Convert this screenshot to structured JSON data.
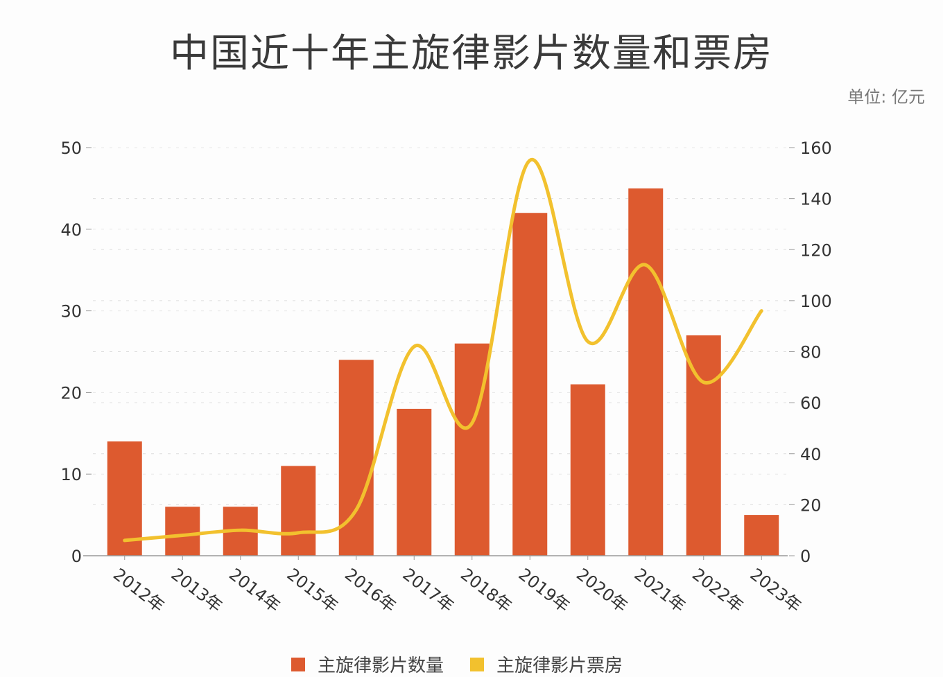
{
  "title": "中国近十年主旋律影片数量和票房",
  "unit_label": "单位: 亿元",
  "colors": {
    "bar": "#dd5a2f",
    "line": "#f2c12e",
    "grid": "#dddddd",
    "axis": "#999999"
  },
  "legend": [
    {
      "label": "主旋律影片数量",
      "color": "#dd5a2f",
      "kind": "bar"
    },
    {
      "label": "主旋律影片票房",
      "color": "#f2c12e",
      "kind": "line"
    }
  ],
  "chart_data": {
    "type": "bar+line",
    "title": "中国近十年主旋律影片数量和票房",
    "subtitle": "单位: 亿元",
    "categories": [
      "2012年",
      "2013年",
      "2014年",
      "2015年",
      "2016年",
      "2017年",
      "2018年",
      "2019年",
      "2020年",
      "2021年",
      "2022年",
      "2023年"
    ],
    "series": [
      {
        "name": "主旋律影片数量",
        "type": "bar",
        "axis": "left",
        "values": [
          14,
          6,
          6,
          11,
          24,
          18,
          26,
          42,
          21,
          45,
          27,
          5
        ]
      },
      {
        "name": "主旋律影片票房",
        "type": "line",
        "axis": "right",
        "smooth": true,
        "values": [
          6,
          8,
          10,
          9,
          18,
          82,
          52,
          155,
          84,
          114,
          68,
          96
        ]
      }
    ],
    "left_axis": {
      "ylim": [
        0,
        50
      ],
      "ticks": [
        0,
        10,
        20,
        30,
        40,
        50
      ]
    },
    "right_axis": {
      "ylim": [
        0,
        160
      ],
      "ticks": [
        0,
        20,
        40,
        60,
        80,
        100,
        120,
        140,
        160
      ]
    },
    "xlabel": "",
    "ylabel": "",
    "grid": true,
    "legend_position": "bottom"
  }
}
